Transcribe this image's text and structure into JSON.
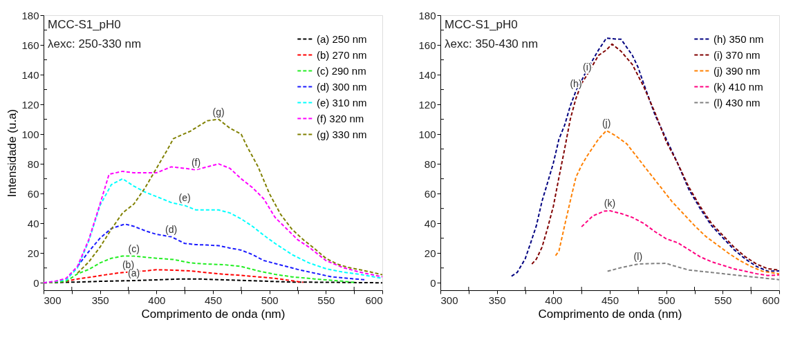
{
  "chart_data": [
    {
      "type": "line",
      "xlabel": "Comprimento de onda (nm)",
      "ylabel": "Intensidade (u.a)",
      "xlim": [
        300,
        600
      ],
      "ylim": [
        -5,
        180
      ],
      "xticks": [
        300,
        {
          "value": 325,
          "label": null
        },
        350,
        {
          "value": 375,
          "label": null
        },
        400,
        {
          "value": 425,
          "label": null
        },
        450,
        {
          "value": 475,
          "label": null
        },
        500,
        {
          "value": 525,
          "label": null
        },
        550,
        {
          "value": 575,
          "label": null
        },
        600
      ],
      "yticks": [
        0,
        {
          "value": 10,
          "label": null
        },
        20,
        {
          "value": 30,
          "label": null
        },
        40,
        {
          "value": 50,
          "label": null
        },
        60,
        {
          "value": 70,
          "label": null
        },
        80,
        {
          "value": 90,
          "label": null
        },
        100,
        {
          "value": 110,
          "label": null
        },
        120,
        {
          "value": 130,
          "label": null
        },
        140,
        {
          "value": 150,
          "label": null
        },
        160,
        {
          "value": 170,
          "label": null
        },
        180
      ],
      "grid": false,
      "legend": "top right",
      "marker": "none",
      "line_style": "dashed",
      "series": [
        {
          "name": "(a) 250 nm",
          "color": "#000000",
          "x": [
            300,
            330,
            350,
            380,
            400,
            420,
            440,
            460,
            480,
            500,
            520,
            560,
            600
          ],
          "values": [
            0,
            0.5,
            1,
            1.5,
            2,
            2.5,
            2.5,
            2,
            1.5,
            1,
            0.5,
            0.3,
            0
          ]
        },
        {
          "name": "(b) 270 nm",
          "color": "#ff0000",
          "x": [
            300,
            320,
            330,
            345,
            355,
            365,
            375,
            390,
            400,
            415,
            430,
            445,
            460,
            475,
            490,
            505,
            520,
            530
          ],
          "values": [
            0,
            1,
            2.6,
            4.2,
            5.4,
            6.5,
            7.2,
            8,
            8.8,
            8.5,
            8,
            6.8,
            5.7,
            5,
            4,
            3,
            1.4,
            0.3
          ]
        },
        {
          "name": "(c) 290 nm",
          "color": "#22ee22",
          "x": [
            300,
            320,
            330,
            340,
            350,
            360,
            370,
            380,
            390,
            400,
            415,
            430,
            445,
            460,
            475,
            490,
            505,
            520,
            540,
            560,
            575
          ],
          "values": [
            0,
            1,
            6,
            9,
            13.4,
            16.5,
            18,
            18,
            17.2,
            16.5,
            15.7,
            13.4,
            12.6,
            12.2,
            11,
            8,
            5.7,
            4,
            2.6,
            1.4,
            0.3
          ]
        },
        {
          "name": "(d) 300 nm",
          "color": "#1a1aff",
          "x": [
            330,
            340,
            350,
            360,
            372,
            380,
            390,
            400,
            413,
            425,
            435,
            445,
            455,
            465,
            475,
            485,
            495,
            510,
            525,
            540,
            555,
            570,
            585
          ],
          "values": [
            11,
            21,
            30,
            36.5,
            39.5,
            38,
            35,
            32.6,
            31,
            26.5,
            25.7,
            25.4,
            25,
            23.4,
            22,
            19,
            15,
            12,
            9,
            6.5,
            4,
            3,
            2
          ]
        },
        {
          "name": "(e) 310 nm",
          "color": "#00ffff",
          "x": [
            300,
            320,
            330,
            340,
            350,
            360,
            370,
            380,
            390,
            400,
            413,
            425,
            435,
            445,
            455,
            465,
            475,
            485,
            495,
            505,
            520,
            535,
            550,
            565,
            580,
            600
          ],
          "values": [
            0,
            2,
            10,
            28,
            52,
            66,
            70,
            65,
            61,
            58,
            54,
            52,
            49,
            49,
            49,
            47,
            43,
            38,
            32,
            26.5,
            19,
            13.4,
            9.5,
            7.2,
            5.7,
            3
          ]
        },
        {
          "name": "(f) 320 nm",
          "color": "#ff00ff",
          "x": [
            300,
            310,
            320,
            330,
            340,
            350,
            358,
            370,
            380,
            390,
            400,
            413,
            425,
            435,
            445,
            455,
            465,
            475,
            485,
            495,
            505,
            515,
            525,
            535,
            550,
            565,
            580,
            600
          ],
          "values": [
            0,
            1,
            3,
            11,
            29,
            53,
            73,
            75,
            74,
            74,
            74,
            78,
            77,
            76,
            78,
            80,
            77,
            70,
            64,
            56.5,
            44,
            36.5,
            29,
            24,
            15,
            10.3,
            7.2,
            4
          ]
        },
        {
          "name": "(g) 330 nm",
          "color": "#808000",
          "x": [
            330,
            340,
            350,
            360,
            370,
            380,
            390,
            400,
            410,
            415,
            430,
            445,
            455,
            465,
            475,
            480,
            490,
            500,
            510,
            520,
            530,
            540,
            550,
            560,
            570,
            580,
            590,
            600
          ],
          "values": [
            6.5,
            14,
            24,
            36,
            47,
            53,
            64,
            77,
            90,
            97,
            102,
            109,
            110,
            104,
            100,
            92,
            78,
            60,
            46,
            36,
            29,
            23,
            16.5,
            12.6,
            10.3,
            8.8,
            7.2,
            5.4
          ]
        }
      ],
      "annotations": [
        "MCC-S1_pH0",
        "λexc: 250-330 nm",
        {
          "text": "(g)",
          "x": 455,
          "y": 110
        },
        {
          "text": "(f)",
          "x": 435,
          "y": 76
        },
        {
          "text": "(e)",
          "x": 425,
          "y": 52
        },
        {
          "text": "(d)",
          "x": 413,
          "y": 31
        },
        {
          "text": "(c)",
          "x": 380,
          "y": 18
        },
        {
          "text": "(b)",
          "x": 375,
          "y": 7.2
        },
        {
          "text": "(a)",
          "x": 380,
          "y": 1.5
        }
      ]
    },
    {
      "type": "line",
      "xlabel": "Comprimento de onda (nm)",
      "xlim": [
        300,
        600
      ],
      "ylim": [
        -5,
        180
      ],
      "xticks": [
        300,
        {
          "value": 325,
          "label": null
        },
        350,
        {
          "value": 375,
          "label": null
        },
        400,
        {
          "value": 425,
          "label": null
        },
        450,
        {
          "value": 475,
          "label": null
        },
        500,
        {
          "value": 525,
          "label": null
        },
        550,
        {
          "value": 575,
          "label": null
        },
        600
      ],
      "yticks": [
        0,
        {
          "value": 10,
          "label": null
        },
        20,
        {
          "value": 30,
          "label": null
        },
        40,
        {
          "value": 50,
          "label": null
        },
        60,
        {
          "value": 70,
          "label": null
        },
        80,
        {
          "value": 90,
          "label": null
        },
        100,
        {
          "value": 110,
          "label": null
        },
        120,
        {
          "value": 130,
          "label": null
        },
        140,
        {
          "value": 150,
          "label": null
        },
        160,
        {
          "value": 170,
          "label": null
        },
        180
      ],
      "grid": false,
      "legend": "top right",
      "marker": "none",
      "line_style": "dashed",
      "series": [
        {
          "name": "(h) 350 nm",
          "color": "#000080",
          "x": [
            363,
            368,
            375,
            380,
            385,
            390,
            395,
            400,
            405,
            410,
            415,
            420,
            425,
            430,
            435,
            440,
            447,
            455,
            460,
            470,
            475,
            480,
            490,
            500,
            510,
            520,
            530,
            540,
            550,
            560,
            570,
            580,
            590,
            600
          ],
          "values": [
            4.5,
            7,
            16,
            27,
            38.5,
            55,
            67.6,
            80.5,
            96.7,
            106,
            119,
            129,
            136,
            143.6,
            150,
            156.6,
            164.6,
            164,
            163.8,
            153,
            145,
            134,
            113,
            96.7,
            80.5,
            62.8,
            50,
            38.5,
            30.4,
            22.3,
            16,
            11,
            7.8,
            8
          ]
        },
        {
          "name": "(i) 370 nm",
          "color": "#800000",
          "x": [
            381,
            385,
            390,
            395,
            400,
            405,
            410,
            415,
            420,
            425,
            430,
            440,
            447,
            452,
            460,
            470,
            480,
            490,
            500,
            510,
            520,
            530,
            540,
            550,
            560,
            570,
            580,
            590,
            600
          ],
          "values": [
            12.6,
            16,
            24,
            37,
            51.4,
            71,
            90,
            110,
            124,
            134,
            140,
            153,
            156.6,
            160.6,
            155.7,
            146.8,
            132,
            114.5,
            95,
            80.5,
            64.4,
            51.4,
            40,
            32,
            24,
            17.5,
            12.6,
            9.4,
            8.6
          ]
        },
        {
          "name": "(j) 390 nm",
          "color": "#ff8000",
          "x": [
            402,
            405,
            410,
            415,
            420,
            425,
            430,
            440,
            447,
            455,
            465,
            475,
            485,
            495,
            505,
            515,
            525,
            535,
            545,
            555,
            565,
            575,
            585,
            600
          ],
          "values": [
            18.3,
            21.5,
            38.5,
            55,
            71,
            79,
            85.4,
            96.7,
            102.4,
            99,
            93.5,
            83.8,
            74,
            64.4,
            54.7,
            46.6,
            38.5,
            31.2,
            25.6,
            20,
            15,
            11,
            7.8,
            6
          ]
        },
        {
          "name": "(k) 410 nm",
          "color": "#ff0080",
          "x": [
            425,
            435,
            445,
            450,
            460,
            470,
            480,
            490,
            500,
            510,
            520,
            530,
            540,
            550,
            560,
            570,
            580,
            590,
            600
          ],
          "values": [
            37.7,
            45,
            48.2,
            48.5,
            46.6,
            44,
            40,
            34.4,
            29.6,
            27,
            22.3,
            17.5,
            14.2,
            11.8,
            9.4,
            7.8,
            6.1,
            4.9,
            5.3
          ]
        },
        {
          "name": "(l) 430 nm",
          "color": "#808080",
          "x": [
            448,
            460,
            475,
            490,
            500,
            505,
            520,
            540,
            560,
            580,
            600
          ],
          "values": [
            7.8,
            10.2,
            12.6,
            13,
            13.1,
            11.8,
            8.6,
            7,
            5.3,
            3.7,
            2.1
          ]
        }
      ],
      "annotations": [
        "MCC-S1_pH0",
        "λexc: 350-430 nm",
        {
          "text": "(h)",
          "x": 420,
          "y": 129
        },
        {
          "text": "(i)",
          "x": 430,
          "y": 140
        },
        {
          "text": "(j)",
          "x": 447,
          "y": 102.4
        },
        {
          "text": "(k)",
          "x": 450,
          "y": 48.5
        },
        {
          "text": "(l)",
          "x": 475,
          "y": 12.6
        }
      ]
    }
  ]
}
